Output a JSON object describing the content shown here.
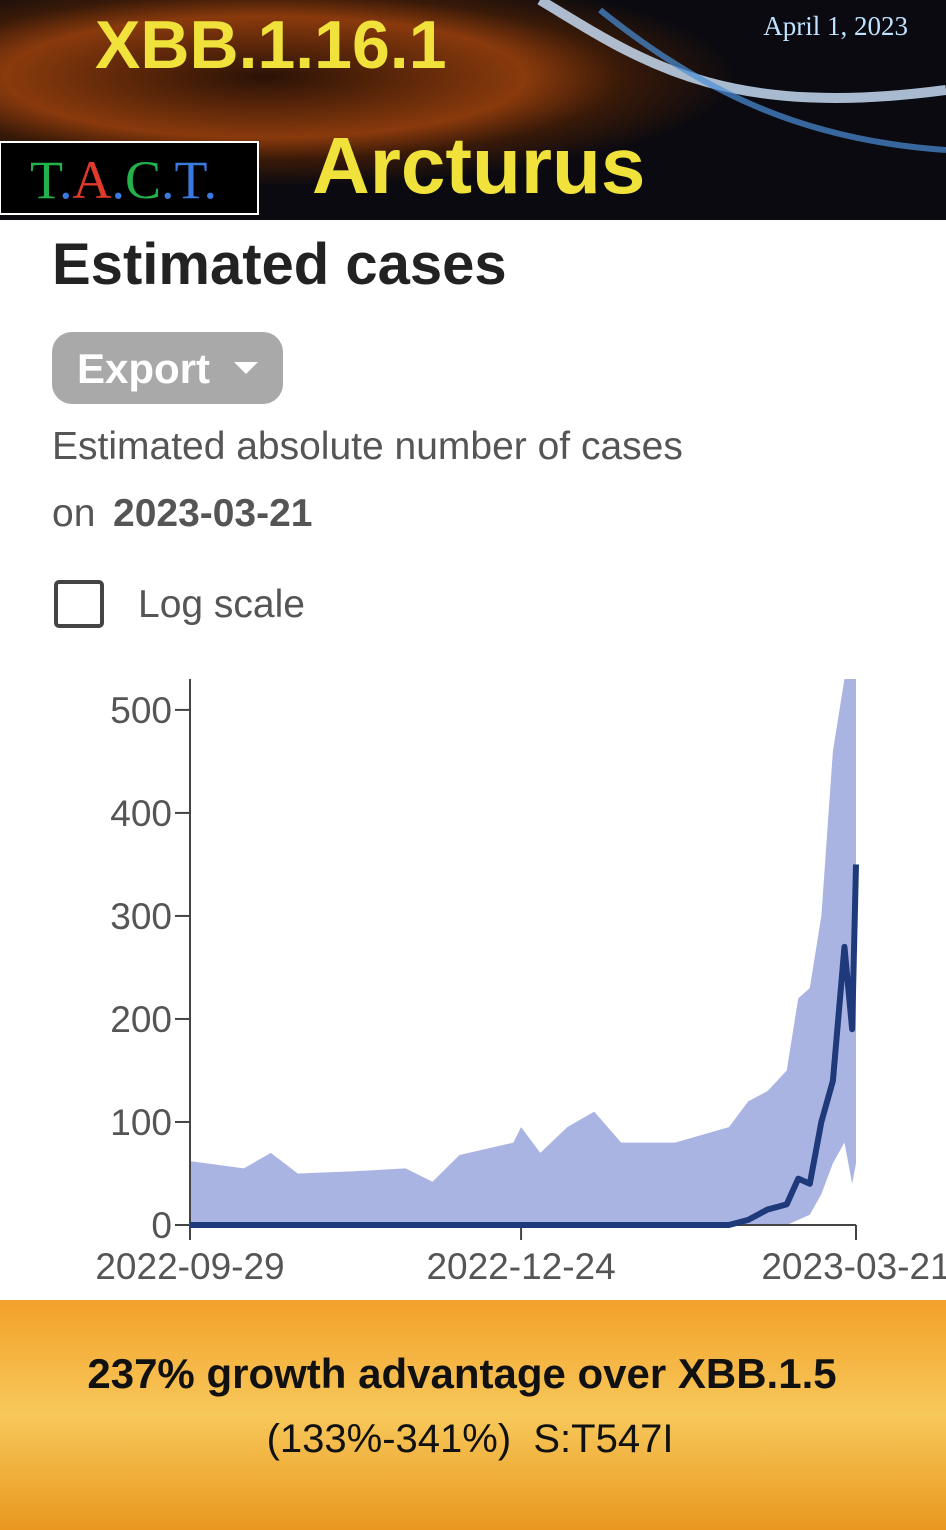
{
  "header": {
    "title": "XBB.1.16.1",
    "date": "April 1, 2023",
    "logo": "T.A.C.T.",
    "subtitle": "Arcturus"
  },
  "panel": {
    "title": "Estimated cases",
    "button": "Export",
    "description": "Estimated absolute number of cases",
    "description_prefix": "on",
    "description_date": "2023-03-21",
    "checkbox_label": "Log scale",
    "checkbox_checked": false
  },
  "chart_data": {
    "type": "line",
    "x": [
      "2022-09-29",
      "2022-10-13",
      "2022-10-20",
      "2022-10-27",
      "2022-11-10",
      "2022-11-24",
      "2022-12-01",
      "2022-12-08",
      "2022-12-22",
      "2022-12-24",
      "2022-12-29",
      "2023-01-05",
      "2023-01-12",
      "2023-01-19",
      "2023-02-02",
      "2023-02-16",
      "2023-02-21",
      "2023-02-26",
      "2023-03-03",
      "2023-03-06",
      "2023-03-09",
      "2023-03-12",
      "2023-03-15",
      "2023-03-18",
      "2023-03-20",
      "2023-03-21"
    ],
    "series": [
      {
        "color": "#1f3a7a",
        "values": [
          0,
          0,
          0,
          0,
          0,
          0,
          0,
          0,
          0,
          0,
          0,
          0,
          0,
          0,
          0,
          0,
          5,
          15,
          20,
          45,
          40,
          100,
          140,
          270,
          190,
          350
        ]
      }
    ],
    "band": {
      "color": "#aab4e2",
      "lower": [
        0,
        0,
        0,
        0,
        0,
        0,
        0,
        0,
        0,
        0,
        0,
        0,
        0,
        0,
        0,
        0,
        0,
        0,
        0,
        5,
        10,
        30,
        60,
        80,
        40,
        60
      ],
      "upper": [
        62,
        55,
        70,
        50,
        52,
        55,
        42,
        68,
        80,
        95,
        70,
        95,
        110,
        80,
        80,
        95,
        120,
        130,
        150,
        220,
        230,
        300,
        460,
        530,
        530,
        530
      ]
    },
    "xlim": [
      "2022-09-29",
      "2023-03-21"
    ],
    "xticks": [
      "2022-09-29",
      "2022-12-24",
      "2023-03-21"
    ],
    "ylim": [
      0,
      530
    ],
    "yticks": [
      0,
      100,
      200,
      300,
      400,
      500
    ],
    "log_scale": false,
    "grid": false
  },
  "footer": {
    "headline": "237% growth advantage over XBB.1.5",
    "detail": "(133%-341%)  S:T547I"
  }
}
